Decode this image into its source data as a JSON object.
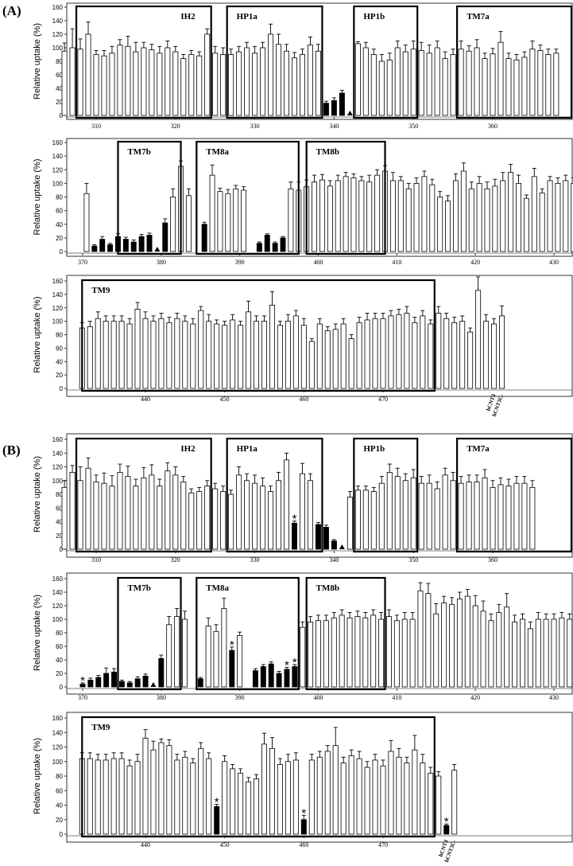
{
  "panel_labels": [
    "(A)",
    "(B)"
  ],
  "y_label": "Relative uptake (%)",
  "chart_data": [
    {
      "type": "bar",
      "panel": "(A)",
      "row": 1,
      "ylabel": "Relative uptake (%)",
      "ylim": [
        0,
        160
      ],
      "yticks": [
        0,
        20,
        40,
        60,
        80,
        100,
        120,
        140,
        160
      ],
      "x_start": 306,
      "x_end": 370,
      "xticks": [
        310,
        320,
        330,
        340,
        350,
        360
      ],
      "values": [
        95,
        100,
        98,
        120,
        90,
        88,
        92,
        104,
        102,
        94,
        100,
        97,
        92,
        100,
        94,
        84,
        90,
        88,
        120,
        92,
        90,
        90,
        94,
        100,
        92,
        100,
        120,
        105,
        95,
        85,
        90,
        104,
        95,
        18,
        22,
        33,
        null,
        106,
        100,
        90,
        80,
        82,
        100,
        94,
        98,
        96,
        92,
        100,
        84,
        90,
        98,
        95,
        100,
        84,
        91,
        108,
        84,
        82,
        86,
        98,
        96,
        90,
        92
      ],
      "errors": [
        12,
        28,
        15,
        18,
        6,
        8,
        10,
        8,
        15,
        14,
        8,
        8,
        10,
        10,
        8,
        6,
        6,
        6,
        8,
        10,
        10,
        8,
        8,
        8,
        10,
        8,
        15,
        15,
        10,
        8,
        8,
        12,
        10,
        3,
        4,
        4,
        0,
        3,
        8,
        8,
        10,
        10,
        10,
        10,
        12,
        12,
        12,
        10,
        10,
        8,
        12,
        8,
        12,
        8,
        8,
        16,
        8,
        8,
        8,
        12,
        8,
        8,
        6
      ],
      "filled": [
        false,
        false,
        false,
        false,
        false,
        false,
        false,
        false,
        false,
        false,
        false,
        false,
        false,
        false,
        false,
        false,
        false,
        false,
        false,
        false,
        false,
        false,
        false,
        false,
        false,
        false,
        false,
        false,
        false,
        false,
        false,
        false,
        false,
        true,
        true,
        true,
        false,
        false,
        false,
        false,
        false,
        false,
        false,
        false,
        false,
        false,
        false,
        false,
        false,
        false,
        false,
        false,
        false,
        false,
        false,
        false,
        false,
        false,
        false,
        false,
        false,
        false,
        false
      ],
      "triangles": [
        36
      ],
      "stars": [],
      "regions": [
        {
          "label": "IH2",
          "start": 307.5,
          "end": 324.5
        },
        {
          "label": "HP1a",
          "start": 326.5,
          "end": 338.5
        },
        {
          "label": "HP1b",
          "start": 342.5,
          "end": 350.5
        },
        {
          "label": "TM7a",
          "start": 355.5,
          "end": 370
        }
      ]
    },
    {
      "type": "bar",
      "panel": "(A)",
      "row": 2,
      "ylabel": "Relative uptake (%)",
      "ylim": [
        0,
        160
      ],
      "yticks": [
        0,
        20,
        40,
        60,
        80,
        100,
        120,
        140,
        160
      ],
      "x_start": 370,
      "x_end": 432,
      "xticks": [
        370,
        380,
        390,
        400,
        410,
        420,
        430
      ],
      "values": [
        85,
        8,
        18,
        10,
        22,
        18,
        14,
        22,
        24,
        null,
        42,
        80,
        125,
        82,
        null,
        40,
        112,
        88,
        85,
        92,
        90,
        null,
        12,
        24,
        12,
        20,
        92,
        90,
        95,
        102,
        105,
        96,
        104,
        110,
        108,
        104,
        102,
        112,
        118,
        104,
        104,
        92,
        100,
        110,
        98,
        80,
        74,
        104,
        118,
        92,
        100,
        92,
        96,
        104,
        116,
        100,
        78,
        110,
        86,
        104,
        100,
        104,
        100,
        90
      ],
      "errors": [
        15,
        2,
        4,
        2,
        4,
        3,
        3,
        3,
        3,
        0,
        6,
        12,
        8,
        10,
        0,
        3,
        15,
        5,
        6,
        5,
        5,
        0,
        2,
        2,
        2,
        2,
        10,
        12,
        10,
        10,
        8,
        8,
        8,
        6,
        6,
        6,
        10,
        8,
        8,
        12,
        6,
        8,
        8,
        8,
        8,
        8,
        8,
        10,
        12,
        10,
        10,
        10,
        10,
        12,
        12,
        12,
        5,
        12,
        6,
        6,
        8,
        8,
        8,
        8
      ],
      "filled": [
        false,
        true,
        true,
        true,
        true,
        true,
        true,
        true,
        true,
        false,
        true,
        false,
        false,
        false,
        false,
        true,
        false,
        false,
        false,
        false,
        false,
        false,
        true,
        true,
        true,
        true,
        false,
        false,
        false,
        false,
        false,
        false,
        false,
        false,
        false,
        false,
        false,
        false,
        false,
        false,
        false,
        false,
        false,
        false,
        false,
        false,
        false,
        false,
        false,
        false,
        false,
        false,
        false,
        false,
        false,
        false,
        false,
        false,
        false,
        false,
        false,
        false,
        false,
        false
      ],
      "triangles": [
        9
      ],
      "stars": [],
      "regions": [
        {
          "label": "TM7b",
          "start": 374.5,
          "end": 382.5
        },
        {
          "label": "TM8a",
          "start": 384.5,
          "end": 397.5
        },
        {
          "label": "TM8b",
          "start": 398.5,
          "end": 408.5
        }
      ]
    },
    {
      "type": "bar",
      "panel": "(A)",
      "row": 3,
      "ylabel": "Relative uptake (%)",
      "ylim": [
        0,
        160
      ],
      "yticks": [
        0,
        20,
        40,
        60,
        80,
        100,
        120,
        140,
        160
      ],
      "x_start": 432,
      "x_end": 489,
      "xticks": [
        440,
        450,
        460,
        470
      ],
      "values": [
        90,
        92,
        104,
        100,
        100,
        100,
        96,
        118,
        104,
        100,
        104,
        98,
        104,
        100,
        96,
        116,
        100,
        96,
        94,
        102,
        94,
        114,
        100,
        100,
        124,
        94,
        100,
        108,
        94,
        70,
        96,
        86,
        88,
        96,
        74,
        98,
        102,
        104,
        104,
        108,
        110,
        112,
        98,
        108,
        96,
        112,
        104,
        98,
        100,
        84,
        146,
        100,
        96,
        108
      ],
      "errors": [
        8,
        8,
        10,
        8,
        8,
        8,
        8,
        10,
        10,
        8,
        8,
        8,
        8,
        8,
        8,
        6,
        10,
        6,
        6,
        8,
        6,
        16,
        8,
        8,
        20,
        6,
        10,
        8,
        10,
        4,
        8,
        6,
        8,
        8,
        6,
        8,
        10,
        8,
        8,
        8,
        8,
        10,
        8,
        8,
        6,
        10,
        8,
        8,
        8,
        6,
        20,
        10,
        8,
        15
      ],
      "filled": [
        false,
        false,
        false,
        false,
        false,
        false,
        false,
        false,
        false,
        false,
        false,
        false,
        false,
        false,
        false,
        false,
        false,
        false,
        false,
        false,
        false,
        false,
        false,
        false,
        false,
        false,
        false,
        false,
        false,
        false,
        false,
        false,
        false,
        false,
        false,
        false,
        false,
        false,
        false,
        false,
        false,
        false,
        false,
        false,
        false,
        false,
        false,
        false,
        false,
        false,
        false,
        false,
        false,
        false
      ],
      "triangles": [],
      "stars": [],
      "regions": [
        {
          "label": "TM9",
          "start": 432,
          "end": 476.5
        }
      ],
      "controls": [
        "hCNT3",
        "hCNT3C-"
      ]
    },
    {
      "type": "bar",
      "panel": "(B)",
      "row": 1,
      "ylabel": "Relative uptake (%)",
      "ylim": [
        0,
        160
      ],
      "yticks": [
        0,
        20,
        40,
        60,
        80,
        100,
        120,
        140,
        160
      ],
      "x_start": 306,
      "x_end": 370,
      "xticks": [
        310,
        320,
        330,
        340,
        350,
        360
      ],
      "values": [
        90,
        112,
        100,
        118,
        98,
        96,
        92,
        112,
        106,
        92,
        104,
        108,
        92,
        114,
        108,
        98,
        82,
        84,
        92,
        88,
        84,
        80,
        108,
        100,
        96,
        92,
        84,
        100,
        130,
        38,
        110,
        100,
        36,
        32,
        12,
        null,
        76,
        86,
        86,
        84,
        96,
        112,
        106,
        100,
        104,
        96,
        96,
        88,
        108,
        100,
        96,
        98,
        98,
        104,
        90,
        94,
        92,
        96,
        96,
        90
      ],
      "errors": [
        10,
        10,
        20,
        15,
        10,
        15,
        15,
        12,
        15,
        10,
        15,
        15,
        10,
        12,
        12,
        8,
        6,
        6,
        8,
        8,
        8,
        6,
        12,
        10,
        12,
        12,
        8,
        12,
        10,
        3,
        15,
        10,
        3,
        3,
        2,
        0,
        8,
        6,
        6,
        6,
        10,
        12,
        12,
        10,
        12,
        10,
        12,
        10,
        10,
        12,
        10,
        10,
        10,
        12,
        10,
        10,
        10,
        10,
        10,
        10
      ],
      "filled": [
        false,
        false,
        false,
        false,
        false,
        false,
        false,
        false,
        false,
        false,
        false,
        false,
        false,
        false,
        false,
        false,
        false,
        false,
        false,
        false,
        false,
        false,
        false,
        false,
        false,
        false,
        false,
        false,
        false,
        true,
        false,
        false,
        true,
        true,
        true,
        false,
        false,
        false,
        false,
        false,
        false,
        false,
        false,
        false,
        false,
        false,
        false,
        false,
        false,
        false,
        false,
        false,
        false,
        false,
        false,
        false,
        false,
        false,
        false,
        false
      ],
      "triangles": [
        35
      ],
      "stars": [
        29
      ],
      "regions": [
        {
          "label": "IH2",
          "start": 307.5,
          "end": 324.5
        },
        {
          "label": "HP1a",
          "start": 326.5,
          "end": 338.5
        },
        {
          "label": "HP1b",
          "start": 342.5,
          "end": 350.5
        },
        {
          "label": "TM7a",
          "start": 355.5,
          "end": 370
        }
      ]
    },
    {
      "type": "bar",
      "panel": "(B)",
      "row": 2,
      "ylabel": "Relative uptake (%)",
      "ylim": [
        0,
        160
      ],
      "yticks": [
        0,
        20,
        40,
        60,
        80,
        100,
        120,
        140,
        160
      ],
      "x_start": 369.5,
      "x_end": 432,
      "xticks": [
        370,
        380,
        390,
        400,
        410,
        420,
        430
      ],
      "values": [
        4,
        10,
        14,
        20,
        22,
        8,
        6,
        12,
        16,
        null,
        42,
        92,
        104,
        100,
        null,
        12,
        90,
        82,
        116,
        54,
        76,
        null,
        24,
        30,
        34,
        20,
        26,
        30,
        88,
        96,
        98,
        98,
        102,
        106,
        102,
        104,
        102,
        106,
        100,
        104,
        98,
        100,
        100,
        142,
        138,
        108,
        124,
        122,
        130,
        134,
        120,
        112,
        98,
        110,
        118,
        96,
        100,
        86,
        100,
        100,
        100,
        102,
        100,
        96,
        94,
        100,
        100
      ],
      "errors": [
        2,
        3,
        3,
        8,
        5,
        2,
        2,
        3,
        3,
        0,
        5,
        12,
        12,
        12,
        0,
        2,
        12,
        10,
        15,
        5,
        5,
        0,
        3,
        3,
        3,
        3,
        3,
        3,
        8,
        8,
        8,
        8,
        8,
        8,
        8,
        8,
        8,
        8,
        10,
        10,
        8,
        10,
        10,
        12,
        15,
        15,
        10,
        10,
        10,
        10,
        15,
        15,
        10,
        12,
        20,
        10,
        8,
        10,
        10,
        8,
        8,
        8,
        8,
        8,
        8,
        8,
        8
      ],
      "filled": [
        true,
        true,
        true,
        true,
        true,
        true,
        true,
        true,
        true,
        false,
        true,
        false,
        false,
        false,
        false,
        true,
        false,
        false,
        false,
        true,
        false,
        false,
        true,
        true,
        true,
        true,
        true,
        true,
        false,
        false,
        false,
        false,
        false,
        false,
        false,
        false,
        false,
        false,
        false,
        false,
        false,
        false,
        false,
        false,
        false,
        false,
        false,
        false,
        false,
        false,
        false,
        false,
        false,
        false,
        false,
        false,
        false,
        false,
        false,
        false,
        false,
        false,
        false,
        false,
        false,
        false,
        false
      ],
      "triangles": [
        9
      ],
      "stars": [
        0,
        19,
        26,
        27
      ],
      "regions": [
        {
          "label": "TM7b",
          "start": 374.5,
          "end": 382.5
        },
        {
          "label": "TM8a",
          "start": 384.5,
          "end": 397.5
        },
        {
          "label": "TM8b",
          "start": 398.5,
          "end": 408.5
        }
      ]
    },
    {
      "type": "bar",
      "panel": "(B)",
      "row": 3,
      "ylabel": "Relative uptake (%)",
      "ylim": [
        0,
        160
      ],
      "yticks": [
        0,
        20,
        40,
        60,
        80,
        100,
        120,
        140,
        160
      ],
      "x_start": 432,
      "x_end": 489,
      "xticks": [
        440,
        450,
        460,
        470
      ],
      "values": [
        104,
        104,
        102,
        102,
        104,
        104,
        94,
        100,
        132,
        116,
        126,
        122,
        102,
        106,
        98,
        118,
        104,
        38,
        100,
        90,
        84,
        72,
        76,
        124,
        118,
        96,
        100,
        102,
        20,
        102,
        106,
        114,
        122,
        98,
        108,
        104,
        92,
        102,
        94,
        114,
        106,
        98,
        116,
        98,
        84,
        80,
        12,
        88
      ],
      "errors": [
        8,
        8,
        8,
        8,
        8,
        8,
        8,
        10,
        12,
        12,
        5,
        8,
        8,
        8,
        6,
        8,
        8,
        3,
        8,
        6,
        6,
        6,
        6,
        15,
        15,
        8,
        10,
        10,
        6,
        8,
        8,
        8,
        25,
        8,
        8,
        10,
        8,
        8,
        8,
        15,
        12,
        8,
        20,
        12,
        8,
        6,
        2,
        8
      ],
      "filled": [
        false,
        false,
        false,
        false,
        false,
        false,
        false,
        false,
        false,
        false,
        false,
        false,
        false,
        false,
        false,
        false,
        false,
        true,
        false,
        false,
        false,
        false,
        false,
        false,
        false,
        false,
        false,
        false,
        true,
        false,
        false,
        false,
        false,
        false,
        false,
        false,
        false,
        false,
        false,
        false,
        false,
        false,
        false,
        false,
        false,
        false,
        true,
        false
      ],
      "triangles": [],
      "stars": [
        17,
        28,
        46
      ],
      "regions": [
        {
          "label": "TM9",
          "start": 432,
          "end": 476.5
        }
      ],
      "controls": [
        "hCNT3",
        "hCNT3C-"
      ]
    }
  ]
}
